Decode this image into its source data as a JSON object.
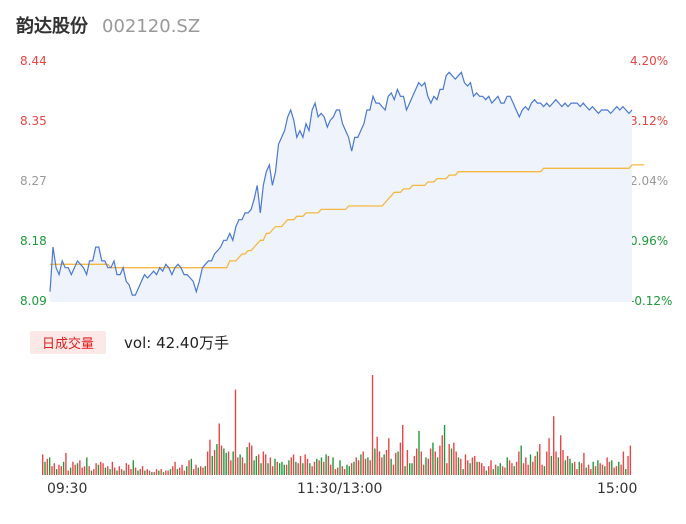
{
  "header": {
    "name": "韵达股份",
    "code": "002120.SZ"
  },
  "colors": {
    "price_line": "#4a78d6",
    "avg_line": "#f5b942",
    "area_fill": "#eef3fc",
    "up": "#e84545",
    "down": "#1e9a3a",
    "flat": "#999999"
  },
  "volume_panel": {
    "badge": "日成交量",
    "label": "vol: ",
    "value": "42.40万手"
  },
  "chart_data": [
    {
      "type": "line",
      "title": "",
      "y_left_ticks": [
        "8.44",
        "8.35",
        "8.27",
        "8.18",
        "8.09"
      ],
      "y_right_ticks": [
        "4.20%",
        "3.12%",
        "2.04%",
        "0.96%",
        "-0.12%"
      ],
      "ylim": [
        8.09,
        8.44
      ],
      "x_ticks": [
        "09:30",
        "11:30/13:00",
        "15:00"
      ],
      "series": [
        {
          "values": [
            8.105,
            8.17,
            8.14,
            8.13,
            8.15,
            8.14,
            8.14,
            8.13,
            8.14,
            8.15,
            8.145,
            8.14,
            8.13,
            8.15,
            8.15,
            8.17,
            8.17,
            8.15,
            8.15,
            8.14,
            8.14,
            8.15,
            8.13,
            8.13,
            8.14,
            8.12,
            8.115,
            8.1,
            8.1,
            8.11,
            8.12,
            8.13,
            8.125,
            8.13,
            8.135,
            8.13,
            8.14,
            8.135,
            8.145,
            8.14,
            8.13,
            8.14,
            8.145,
            8.14,
            8.13,
            8.13,
            8.125,
            8.12,
            8.105,
            8.12,
            8.14,
            8.145,
            8.15,
            8.15,
            8.16,
            8.165,
            8.17,
            8.18,
            8.18,
            8.19,
            8.18,
            8.2,
            8.21,
            8.21,
            8.22,
            8.22,
            8.225,
            8.24,
            8.26,
            8.22,
            8.26,
            8.28,
            8.29,
            8.26,
            8.28,
            8.32,
            8.33,
            8.34,
            8.36,
            8.37,
            8.355,
            8.33,
            8.34,
            8.33,
            8.35,
            8.34,
            8.37,
            8.38,
            8.36,
            8.365,
            8.36,
            8.345,
            8.355,
            8.36,
            8.37,
            8.37,
            8.35,
            8.34,
            8.33,
            8.31,
            8.33,
            8.33,
            8.34,
            8.35,
            8.37,
            8.37,
            8.39,
            8.38,
            8.38,
            8.375,
            8.37,
            8.39,
            8.395,
            8.385,
            8.4,
            8.39,
            8.39,
            8.37,
            8.38,
            8.39,
            8.4,
            8.41,
            8.405,
            8.41,
            8.39,
            8.38,
            8.39,
            8.385,
            8.4,
            8.4,
            8.42,
            8.425,
            8.42,
            8.415,
            8.42,
            8.425,
            8.41,
            8.405,
            8.41,
            8.39,
            8.395,
            8.39,
            8.39,
            8.385,
            8.39,
            8.38,
            8.385,
            8.39,
            8.38,
            8.38,
            8.39,
            8.39,
            8.38,
            8.37,
            8.36,
            8.37,
            8.375,
            8.37,
            8.38,
            8.385,
            8.38,
            8.38,
            8.375,
            8.38,
            8.375,
            8.38,
            8.385,
            8.38,
            8.375,
            8.38,
            8.375,
            8.38,
            8.38,
            8.38,
            8.375,
            8.38,
            8.375,
            8.37,
            8.375,
            8.37,
            8.365,
            8.37,
            8.37,
            8.37,
            8.365,
            8.37,
            8.375,
            8.37,
            8.375,
            8.37,
            8.365,
            8.37
          ]
        },
        {
          "values": [
            8.145,
            8.145,
            8.145,
            8.145,
            8.145,
            8.145,
            8.145,
            8.145,
            8.145,
            8.145,
            8.145,
            8.145,
            8.145,
            8.145,
            8.145,
            8.145,
            8.145,
            8.145,
            8.145,
            8.145,
            8.14,
            8.14,
            8.14,
            8.14,
            8.14,
            8.14,
            8.14,
            8.14,
            8.14,
            8.14,
            8.14,
            8.14,
            8.14,
            8.14,
            8.14,
            8.14,
            8.14,
            8.14,
            8.14,
            8.14,
            8.14,
            8.14,
            8.14,
            8.14,
            8.14,
            8.14,
            8.14,
            8.14,
            8.14,
            8.14,
            8.14,
            8.14,
            8.14,
            8.14,
            8.14,
            8.14,
            8.14,
            8.14,
            8.14,
            8.15,
            8.15,
            8.15,
            8.155,
            8.16,
            8.16,
            8.165,
            8.165,
            8.17,
            8.175,
            8.18,
            8.18,
            8.19,
            8.19,
            8.195,
            8.2,
            8.2,
            8.2,
            8.205,
            8.21,
            8.21,
            8.21,
            8.215,
            8.215,
            8.215,
            8.22,
            8.22,
            8.22,
            8.22,
            8.22,
            8.225,
            8.225,
            8.225,
            8.225,
            8.225,
            8.225,
            8.225,
            8.225,
            8.225,
            8.23,
            8.23,
            8.23,
            8.23,
            8.23,
            8.23,
            8.23,
            8.23,
            8.23,
            8.23,
            8.23,
            8.23,
            8.235,
            8.24,
            8.245,
            8.25,
            8.25,
            8.25,
            8.255,
            8.255,
            8.255,
            8.26,
            8.26,
            8.26,
            8.26,
            8.26,
            8.265,
            8.265,
            8.265,
            8.27,
            8.27,
            8.27,
            8.27,
            8.275,
            8.275,
            8.275,
            8.28,
            8.28,
            8.28,
            8.28,
            8.28,
            8.28,
            8.28,
            8.28,
            8.28,
            8.28,
            8.28,
            8.28,
            8.28,
            8.28,
            8.28,
            8.28,
            8.28,
            8.28,
            8.28,
            8.28,
            8.28,
            8.28,
            8.28,
            8.28,
            8.28,
            8.28,
            8.28,
            8.28,
            8.285,
            8.285,
            8.285,
            8.285,
            8.285,
            8.285,
            8.285,
            8.285,
            8.285,
            8.285,
            8.285,
            8.285,
            8.285,
            8.285,
            8.285,
            8.285,
            8.285,
            8.285,
            8.285,
            8.285,
            8.285,
            8.285,
            8.285,
            8.285,
            8.285,
            8.285,
            8.285,
            8.285,
            8.285,
            8.29,
            8.29,
            8.29,
            8.29,
            8.29
          ]
        }
      ]
    },
    {
      "type": "bar",
      "title": "",
      "values": [
        14,
        9,
        11,
        12,
        6,
        8,
        4,
        7,
        6,
        9,
        15,
        3,
        5,
        9,
        7,
        8,
        10,
        5,
        6,
        12,
        6,
        3,
        4,
        8,
        7,
        9,
        8,
        5,
        6,
        4,
        9,
        5,
        3,
        6,
        4,
        3,
        8,
        7,
        4,
        10,
        5,
        3,
        4,
        6,
        3,
        4,
        3,
        2,
        2,
        4,
        3,
        4,
        2,
        3,
        3,
        4,
        6,
        9,
        4,
        5,
        7,
        3,
        6,
        10,
        11,
        4,
        7,
        5,
        6,
        5,
        6,
        16,
        24,
        13,
        17,
        21,
        35,
        20,
        18,
        15,
        16,
        10,
        16,
        58,
        12,
        14,
        12,
        8,
        19,
        22,
        20,
        10,
        13,
        14,
        8,
        16,
        14,
        8,
        12,
        6,
        11,
        9,
        8,
        9,
        7,
        7,
        10,
        12,
        14,
        9,
        8,
        13,
        8,
        14,
        11,
        8,
        6,
        9,
        11,
        10,
        12,
        9,
        14,
        13,
        7,
        12,
        4,
        5,
        10,
        6,
        4,
        7,
        6,
        8,
        9,
        12,
        10,
        14,
        16,
        11,
        12,
        10,
        68,
        18,
        26,
        16,
        12,
        14,
        17,
        25,
        11,
        7,
        15,
        16,
        22,
        34,
        6,
        17,
        8,
        8,
        13,
        18,
        30,
        16,
        7,
        12,
        11,
        18,
        22,
        16,
        12,
        20,
        27,
        34,
        8,
        21,
        18,
        22,
        16,
        12,
        11,
        4,
        14,
        10,
        8,
        12,
        13,
        9,
        9,
        8,
        6,
        3,
        6,
        10,
        4,
        7,
        6,
        8,
        6,
        5,
        12,
        10,
        8,
        6,
        9,
        16,
        20,
        8,
        12,
        7,
        14,
        9,
        13,
        16,
        21,
        7,
        6,
        16,
        25,
        13,
        40,
        16,
        12,
        27,
        17,
        10,
        13,
        11,
        8,
        9,
        4,
        9,
        8,
        15,
        5,
        7,
        4,
        9,
        6,
        10,
        8,
        7,
        6,
        12,
        9,
        10,
        5,
        6,
        9,
        7,
        16,
        4,
        13,
        20
      ],
      "directions": "rgrgrrgrrgrrgrrgrrrgrgrrgrrgrgrrgrrgrrrgrgrrgrrgrrgrgrrgrrgrrrgrgrrgrrgrrgrgrrggrrgrrgrrgrrggrgrrgrrgrgggrgrrgrrgrrgrrgrgrgrrgrrgrrggrgrrgrrgrrgrrrgrrgrrgrrgrggrrgrrgrrgrgrrgrrgrrgrgrrgrrgrrrgrrgrggrrgrrgrrgrrrgrrgrrgrrgrrgrrgrggrrgrrgr"
    }
  ]
}
